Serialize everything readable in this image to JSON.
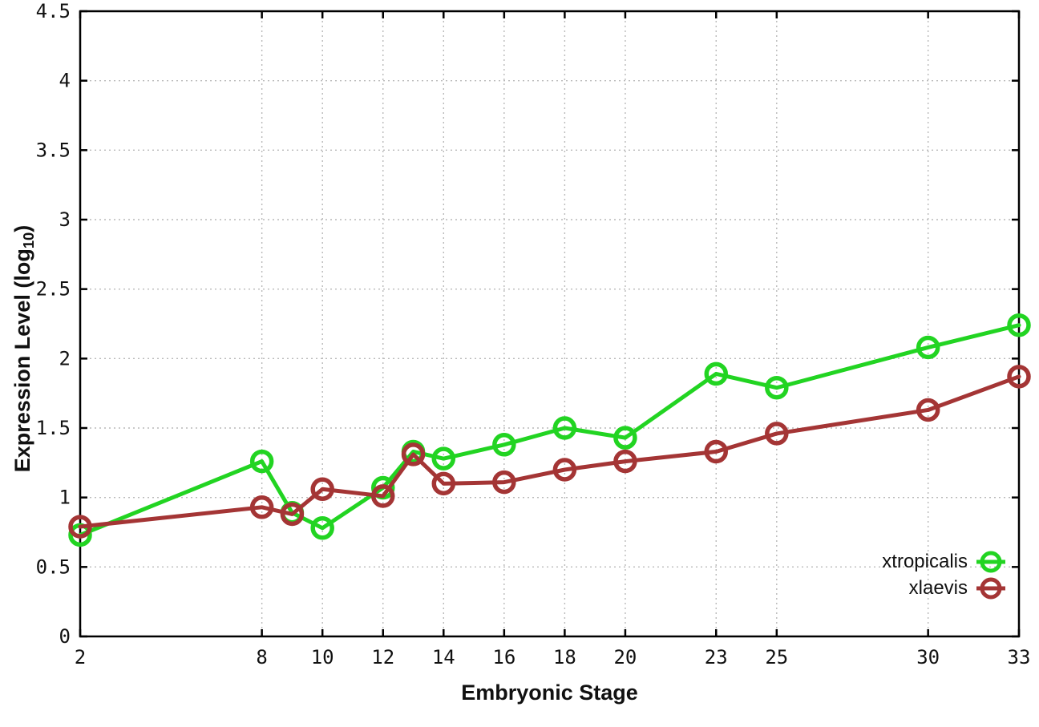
{
  "figure": {
    "background": "#ffffff",
    "axis_color": "#000000",
    "grid_color": "#b9b9b9",
    "ylabel": {
      "prefix": "Expression Level (log",
      "sub": "10",
      "suffix": ")"
    }
  },
  "chart_data": {
    "type": "line",
    "title": "",
    "xlabel": "Embryonic Stage",
    "ylabel": "Expression Level (log10)",
    "x": [
      2,
      8,
      9,
      10,
      12,
      13,
      14,
      16,
      18,
      20,
      23,
      25,
      30,
      33
    ],
    "xticks": [
      2,
      8,
      10,
      12,
      14,
      16,
      18,
      20,
      23,
      25,
      30,
      33
    ],
    "yticks": [
      0,
      0.5,
      1,
      1.5,
      2,
      2.5,
      3,
      3.5,
      4,
      4.5
    ],
    "xlim": [
      2,
      33
    ],
    "ylim": [
      0,
      4.5
    ],
    "grid": true,
    "grid_style": "dotted",
    "legend_position": "bottom-right-inside",
    "marker": "open-circle",
    "series": [
      {
        "name": "xtropicalis",
        "color": "#22d422",
        "values": [
          0.73,
          1.26,
          0.89,
          0.78,
          1.07,
          1.33,
          1.28,
          1.38,
          1.5,
          1.43,
          1.89,
          1.79,
          2.08,
          2.24
        ]
      },
      {
        "name": "xlaevis",
        "color": "#a43535",
        "values": [
          0.79,
          0.93,
          0.88,
          1.06,
          1.01,
          1.31,
          1.1,
          1.11,
          1.2,
          1.26,
          1.33,
          1.46,
          1.63,
          1.87
        ]
      }
    ]
  }
}
